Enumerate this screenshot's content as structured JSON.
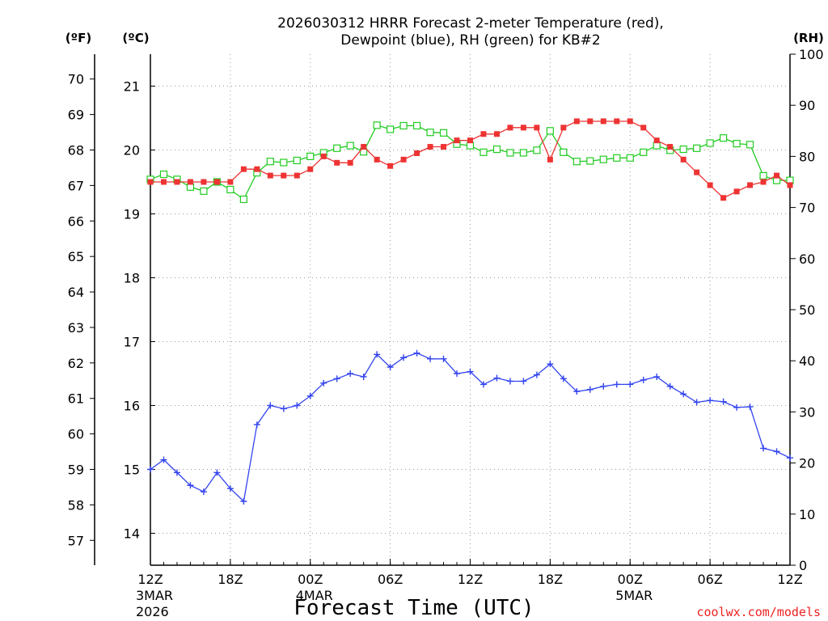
{
  "chart_data": {
    "type": "line",
    "title_line1": "2026030312 HRRR Forecast 2-meter Temperature (red),",
    "title_line2": "Dewpoint (blue), RH (green) for KB#2",
    "xlabel": "Forecast Time (UTC)",
    "credit": "coolwx.com/models",
    "units": {
      "f": "(ºF)",
      "c": "(ºC)",
      "rh": "(RH)"
    },
    "x_hours_from_start": [
      0,
      48
    ],
    "x_ticks": [
      {
        "hour": 0,
        "label": "12Z",
        "date": "3MAR",
        "year": "2026"
      },
      {
        "hour": 6,
        "label": "18Z"
      },
      {
        "hour": 12,
        "label": "00Z",
        "date": "4MAR"
      },
      {
        "hour": 18,
        "label": "06Z"
      },
      {
        "hour": 24,
        "label": "12Z"
      },
      {
        "hour": 30,
        "label": "18Z"
      },
      {
        "hour": 36,
        "label": "00Z",
        "date": "5MAR"
      },
      {
        "hour": 42,
        "label": "06Z"
      },
      {
        "hour": 48,
        "label": "12Z"
      }
    ],
    "celsius_range": [
      13.5,
      21.5
    ],
    "celsius_ticks": [
      "14",
      "15",
      "16",
      "17",
      "18",
      "19",
      "20",
      "21"
    ],
    "fahrenheit_ticks": [
      "57",
      "58",
      "59",
      "60",
      "61",
      "62",
      "63",
      "64",
      "65",
      "66",
      "67",
      "68",
      "69",
      "70"
    ],
    "rh_range": [
      0,
      100
    ],
    "rh_ticks": [
      "0",
      "10",
      "20",
      "30",
      "40",
      "50",
      "60",
      "70",
      "80",
      "90",
      "100"
    ],
    "colors": {
      "temperature": "#ee3333",
      "dewpoint": "#3344ee",
      "rh": "#22cc22"
    },
    "series": [
      {
        "name": "Temperature",
        "unit": "C",
        "values": [
          19.5,
          19.5,
          19.5,
          19.5,
          19.5,
          19.5,
          19.5,
          19.7,
          19.7,
          19.6,
          19.6,
          19.6,
          19.7,
          19.9,
          19.8,
          19.8,
          20.05,
          19.85,
          19.75,
          19.85,
          19.95,
          20.05,
          20.05,
          20.15,
          20.15,
          20.25,
          20.25,
          20.35,
          20.35,
          20.35,
          19.85,
          20.35,
          20.45,
          20.45,
          20.45,
          20.45,
          20.45,
          20.35,
          20.15,
          20.05,
          19.85,
          19.65,
          19.45,
          19.25,
          19.35,
          19.45,
          19.5,
          19.6,
          19.45
        ]
      },
      {
        "name": "Dewpoint",
        "unit": "C",
        "values": [
          15.0,
          15.15,
          14.95,
          14.75,
          14.65,
          14.95,
          14.7,
          14.5,
          15.7,
          16.0,
          15.95,
          16.0,
          16.15,
          16.35,
          16.42,
          16.5,
          16.45,
          16.8,
          16.6,
          16.75,
          16.82,
          16.73,
          16.73,
          16.5,
          16.53,
          16.33,
          16.43,
          16.38,
          16.38,
          16.48,
          16.65,
          16.42,
          16.22,
          16.25,
          16.3,
          16.33,
          16.33,
          16.4,
          16.45,
          16.3,
          16.18,
          16.05,
          16.08,
          16.06,
          15.97,
          15.98,
          15.33,
          15.28,
          15.18
        ]
      },
      {
        "name": "RH",
        "unit": "%",
        "values": [
          75.5,
          76.5,
          75.5,
          74.0,
          73.2,
          75.0,
          73.5,
          71.6,
          76.8,
          79.0,
          78.8,
          79.2,
          80.0,
          80.7,
          81.6,
          82.1,
          80.9,
          86.1,
          85.3,
          86.0,
          86.0,
          84.7,
          84.6,
          82.4,
          82.1,
          80.8,
          81.4,
          80.7,
          80.7,
          81.2,
          85.0,
          80.8,
          79.0,
          79.1,
          79.4,
          79.7,
          79.7,
          80.8,
          82.1,
          81.2,
          81.4,
          81.6,
          82.6,
          83.6,
          82.5,
          82.3,
          76.2,
          75.3,
          75.3
        ]
      }
    ]
  }
}
